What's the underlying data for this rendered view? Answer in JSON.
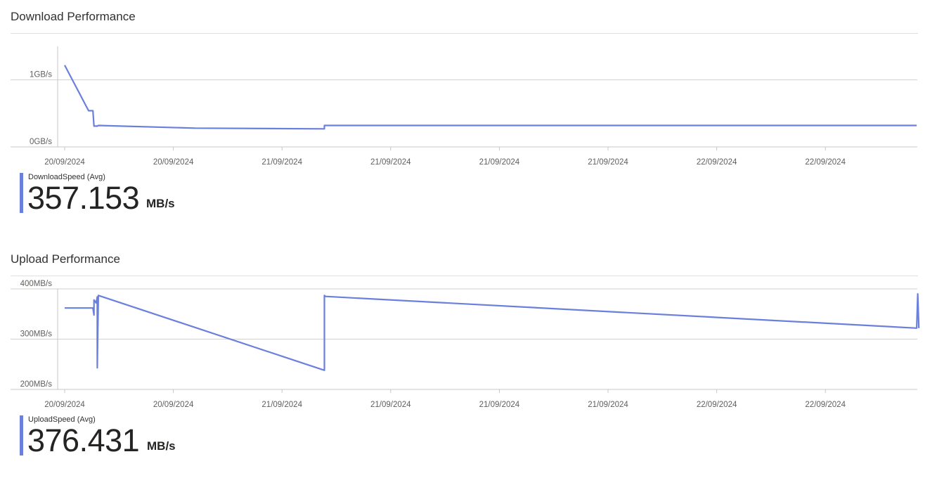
{
  "panels": [
    {
      "title": "Download Performance",
      "metric_label": "DownloadSpeed (Avg)",
      "metric_value": "357.153",
      "metric_unit": "MB/s"
    },
    {
      "title": "Upload Performance",
      "metric_label": "UploadSpeed (Avg)",
      "metric_value": "376.431",
      "metric_unit": "MB/s"
    }
  ],
  "colors": {
    "series": "#6b7fdc",
    "grid": "#d2d0ce",
    "axis": "#c8c6c4",
    "text": "#605e5c"
  },
  "chart_data": [
    {
      "type": "line",
      "title": "Download Performance",
      "x_tick_labels": [
        "20/09/2024",
        "20/09/2024",
        "21/09/2024",
        "21/09/2024",
        "21/09/2024",
        "21/09/2024",
        "22/09/2024",
        "22/09/2024"
      ],
      "y_ticks": [
        {
          "label": "1GB/s",
          "value": 1.0
        },
        {
          "label": "0GB/s",
          "value": 0.0
        }
      ],
      "ylim": [
        0,
        1.5
      ],
      "grid": true,
      "series": [
        {
          "legend": "DownloadSpeed (Avg)",
          "unit": "GB/s",
          "points": [
            [
              0.0,
              1.22
            ],
            [
              0.22,
              0.54
            ],
            [
              0.26,
              0.54
            ],
            [
              0.27,
              0.31
            ],
            [
              0.3,
              0.31
            ],
            [
              0.31,
              0.32
            ],
            [
              1.2,
              0.28
            ],
            [
              2.39,
              0.27
            ],
            [
              2.39,
              0.32
            ],
            [
              7.84,
              0.32
            ]
          ]
        }
      ]
    },
    {
      "type": "line",
      "title": "Upload Performance",
      "x_tick_labels": [
        "20/09/2024",
        "20/09/2024",
        "21/09/2024",
        "21/09/2024",
        "21/09/2024",
        "21/09/2024",
        "22/09/2024",
        "22/09/2024"
      ],
      "y_ticks": [
        {
          "label": "400MB/s",
          "value": 400
        },
        {
          "label": "300MB/s",
          "value": 300
        },
        {
          "label": "200MB/s",
          "value": 200
        }
      ],
      "ylim": [
        200,
        400
      ],
      "grid": true,
      "series": [
        {
          "legend": "UploadSpeed (Avg)",
          "unit": "MB/s",
          "points": [
            [
              0.0,
              362
            ],
            [
              0.26,
              362
            ],
            [
              0.27,
              348
            ],
            [
              0.27,
              378
            ],
            [
              0.29,
              372
            ],
            [
              0.3,
              384
            ],
            [
              0.3,
              243
            ],
            [
              0.31,
              387
            ],
            [
              2.39,
              238
            ],
            [
              2.39,
              387
            ],
            [
              2.4,
              385
            ],
            [
              7.84,
              322
            ],
            [
              7.85,
              390
            ],
            [
              7.86,
              322
            ]
          ]
        }
      ]
    }
  ]
}
